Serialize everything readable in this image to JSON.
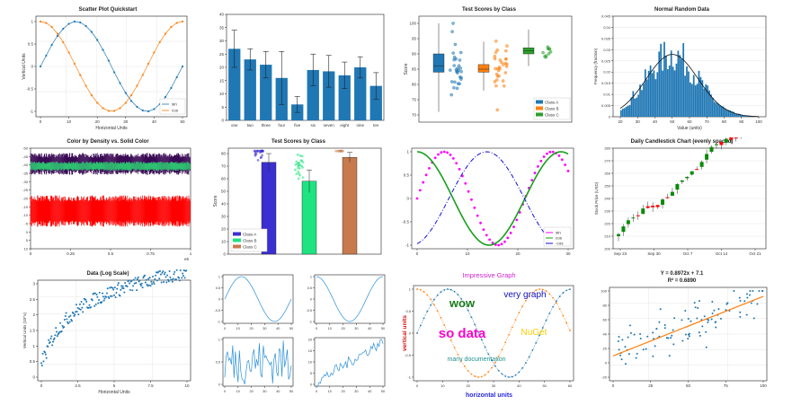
{
  "colors": {
    "blue": "#1f77b4",
    "orange": "#ff7f0e",
    "green": "#2ca02c",
    "magenta": "#ff00ff",
    "red": "#ff0000",
    "purple": "#3b0a55",
    "dens_green": "#2fbf71",
    "frame": "#000000",
    "grid": "#e6e6e6"
  },
  "chart_data": [
    {
      "id": "p1",
      "type": "line",
      "title": "Scatter Plot Quickstart",
      "xlabel": "Horizontal Units",
      "ylabel": "Vertical Units",
      "xlim": [
        0,
        50
      ],
      "ylim": [
        -1,
        1
      ],
      "xticks": [
        "0",
        "10",
        "20",
        "30",
        "40",
        "50"
      ],
      "yticks": [
        "-1",
        "-0.5",
        "0",
        "0.5",
        "1"
      ],
      "x": [
        0,
        2,
        4,
        6,
        8,
        10,
        12,
        14,
        16,
        18,
        20,
        22,
        24,
        26,
        28,
        30,
        32,
        34,
        36,
        38,
        40,
        42,
        44,
        46,
        48,
        50
      ],
      "series": [
        {
          "name": "sin",
          "values": [
            0,
            0.24,
            0.48,
            0.68,
            0.84,
            0.95,
            1.0,
            0.98,
            0.9,
            0.77,
            0.59,
            0.37,
            0.13,
            -0.13,
            -0.37,
            -0.59,
            -0.77,
            -0.9,
            -0.98,
            -1.0,
            -0.95,
            -0.84,
            -0.68,
            -0.48,
            -0.24,
            0
          ]
        },
        {
          "name": "cos",
          "values": [
            1,
            0.97,
            0.88,
            0.73,
            0.54,
            0.31,
            0.06,
            -0.19,
            -0.43,
            -0.64,
            -0.81,
            -0.93,
            -0.99,
            -0.99,
            -0.93,
            -0.81,
            -0.64,
            -0.43,
            -0.19,
            0.06,
            0.31,
            0.54,
            0.73,
            0.88,
            0.97,
            1
          ]
        }
      ],
      "legend": "bottom-right"
    },
    {
      "id": "p2",
      "type": "bar",
      "categories": [
        "one",
        "two",
        "three",
        "four",
        "five",
        "six",
        "seven",
        "eight",
        "nine",
        "ten"
      ],
      "values": [
        27,
        23,
        21,
        16,
        6,
        19,
        18.5,
        17,
        20,
        13
      ],
      "errors": [
        7,
        4,
        5,
        10,
        3,
        6,
        6,
        5,
        4,
        5
      ],
      "ylim": [
        0,
        40
      ],
      "yticks": [
        "0",
        "5",
        "10",
        "15",
        "20",
        "25",
        "30",
        "35",
        "40"
      ]
    },
    {
      "id": "p3",
      "type": "box",
      "title": "Test Scores by Class",
      "ylabel": "Score",
      "yticks": [
        "70",
        "75",
        "80",
        "85",
        "90",
        "95",
        "100"
      ],
      "ylim": [
        68,
        102
      ],
      "series": [
        {
          "name": "Class A",
          "q1": 84,
          "median": 86,
          "q3": 90,
          "low": 71,
          "high": 100
        },
        {
          "name": "Class B",
          "q1": 84,
          "median": 85,
          "q3": 86.5,
          "low": 78,
          "high": 94
        },
        {
          "name": "Class C",
          "q1": 90,
          "median": 91,
          "q3": 92,
          "low": 86,
          "high": 98
        }
      ],
      "legend": "bottom-right"
    },
    {
      "id": "p4",
      "type": "histogram",
      "title": "Normal Random Data",
      "xlabel": "Value (units)",
      "ylabel": "Frequency (fraction)",
      "xticks": [
        "20",
        "30",
        "40",
        "50",
        "60",
        "70",
        "80",
        "90",
        "100"
      ],
      "yticks": [
        "0",
        "0.005",
        "0.01",
        "0.015",
        "0.02",
        "0.025",
        "0.03",
        "0.035",
        "0.04",
        "0.045"
      ],
      "mean": 50,
      "sd": 15
    },
    {
      "id": "p5",
      "type": "signal",
      "title": "Color by Density vs. Solid Color",
      "xticks": [
        "0",
        "0.25",
        "0.5",
        "0.75",
        "1"
      ],
      "yticks": [
        "10",
        "5",
        "0",
        "-5",
        "-10",
        "-15",
        "-20",
        "-25",
        "-30",
        "-35",
        "-40",
        "-45",
        "-50"
      ],
      "offset_label": "e5"
    },
    {
      "id": "p6",
      "type": "bar",
      "title": "Test Scores by Class",
      "ylabel": "Score",
      "yticks": [
        "0",
        "10",
        "20",
        "30",
        "40",
        "50",
        "60",
        "70",
        "80"
      ],
      "ylim": [
        0,
        85
      ],
      "series": [
        {
          "name": "Class A",
          "value": 73,
          "err": 7
        },
        {
          "name": "Class B",
          "value": 58,
          "err": 9
        },
        {
          "name": "Class C",
          "value": 77,
          "err": 4
        }
      ],
      "legend": "bottom-left"
    },
    {
      "id": "p7",
      "type": "line",
      "xticks": [
        "0",
        "10",
        "20",
        "30"
      ],
      "yticks": [
        "-1",
        "-0.5",
        "0",
        "0.5",
        "1"
      ],
      "series": [
        {
          "name": "sin"
        },
        {
          "name": "cos"
        },
        {
          "name": "-cos"
        }
      ],
      "legend": "bottom-right"
    },
    {
      "id": "p8",
      "type": "candlestick",
      "title": "Daily Candlestick Chart (evenly spaced)",
      "ylabel": "Stock Price (USD)",
      "xticks": [
        "Sep 23",
        "Sep 30",
        "Oct 7",
        "Oct 14",
        "Oct 21"
      ],
      "yticks": [
        "200",
        "210",
        "220",
        "230",
        "240",
        "250",
        "260",
        "270",
        "280"
      ],
      "ylim": [
        195,
        285
      ]
    },
    {
      "id": "p9",
      "type": "scatter",
      "title": "Data (Log Scale)",
      "xlabel": "Horizontal Units",
      "ylabel": "Vertical Units (10^x)",
      "xticks": [
        "0",
        "2.5",
        "5",
        "7.5",
        "10"
      ],
      "yticks": [
        "0",
        "0.5",
        "1",
        "1.5",
        "2",
        "2.5",
        "3"
      ],
      "xlim": [
        0,
        10
      ],
      "ylim": [
        0,
        3.2
      ]
    },
    {
      "id": "p10",
      "type": "line",
      "subplots": [
        {
          "xticks": [
            "0",
            "10",
            "20",
            "30",
            "40",
            "50"
          ],
          "yticks": [
            "-1",
            "-0.5",
            "0",
            "0.5",
            "1"
          ]
        },
        {
          "xticks": [
            "0",
            "10",
            "20",
            "30",
            "40",
            "50"
          ],
          "yticks": [
            "-1",
            "-0.5",
            "0",
            "0.5",
            "1"
          ]
        },
        {
          "xticks": [
            "0",
            "10",
            "20",
            "30",
            "40",
            "50"
          ],
          "yticks": [
            "0",
            "0.5",
            "1"
          ]
        },
        {
          "xticks": [
            "0",
            "10",
            "20",
            "30",
            "40",
            "50"
          ],
          "yticks": [
            "0",
            "5",
            "10",
            "15",
            "20"
          ]
        }
      ]
    },
    {
      "id": "p11",
      "type": "line",
      "title": "Impressive Graph",
      "xlabel": "horizontal units",
      "ylabel": "vertical units",
      "xticks": [
        "0",
        "10",
        "20",
        "30",
        "40",
        "50",
        "60"
      ],
      "yticks": [
        "-1",
        "-0.5",
        "0",
        "0.5",
        "1"
      ],
      "annotations": [
        {
          "text": "wow",
          "color": "#1a7a1a"
        },
        {
          "text": "very graph",
          "color": "#1010c0"
        },
        {
          "text": "so data",
          "color": "#ff00cc"
        },
        {
          "text": "NuGet",
          "color": "#ffcc00"
        },
        {
          "text": "many documentation",
          "color": "#1f8f8f"
        }
      ]
    },
    {
      "id": "p12",
      "type": "scatter",
      "title": "Y = 0.8972x + 7.1",
      "subtitle": "R² = 0.6890",
      "xticks": [
        "0",
        "25",
        "50",
        "75",
        "100"
      ],
      "yticks": [
        "-20",
        "0",
        "20",
        "40",
        "60",
        "80",
        "100"
      ],
      "xlim": [
        0,
        100
      ],
      "ylim": [
        -30,
        110
      ],
      "slope": 0.8972,
      "intercept": 7.1
    }
  ]
}
